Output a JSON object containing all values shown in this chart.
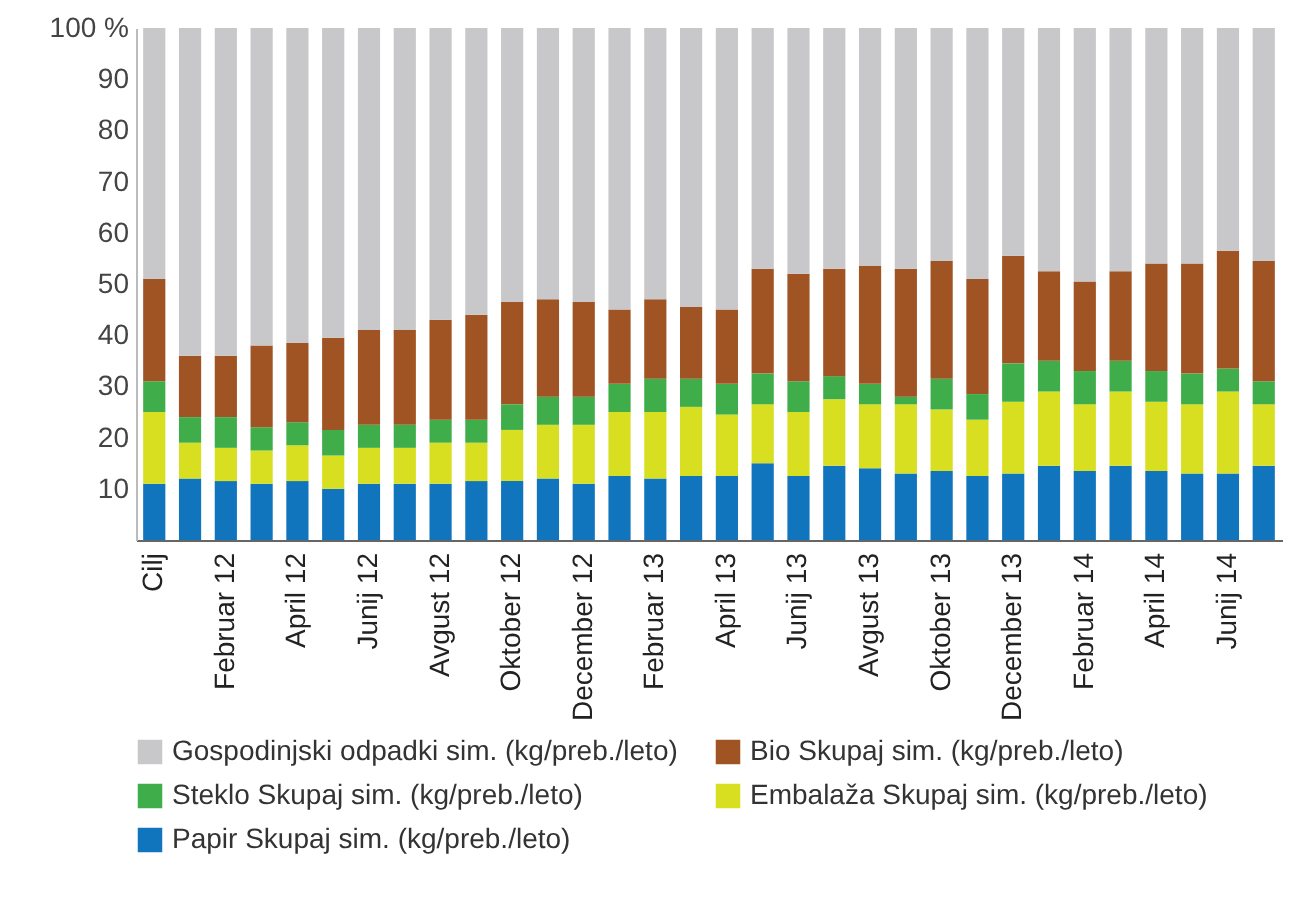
{
  "chart_data": {
    "type": "bar",
    "stacked": true,
    "legend": "bottom",
    "categories": [
      "Cilj",
      null,
      "Februar 12",
      null,
      "April 12",
      null,
      "Junij 12",
      null,
      "Avgust 12",
      null,
      "Oktober 12",
      null,
      "December 12",
      null,
      "Februar 13",
      null,
      "April 13",
      null,
      "Junij 13",
      null,
      "Avgust 13",
      null,
      "Oktober 13",
      null,
      "December 13",
      null,
      "Februar 14",
      null,
      "April 14",
      null,
      "Junij 14",
      null
    ],
    "ylim": [
      0,
      100
    ],
    "yticks": [
      10,
      20,
      30,
      40,
      50,
      60,
      70,
      80,
      90,
      {
        "value": 100,
        "label": "100 %"
      }
    ],
    "series": [
      {
        "name": "Papir Skupaj sim. (kg/preb./leto)",
        "color": "#1175be",
        "values": [
          11,
          12,
          11.5,
          11,
          11.5,
          10,
          11,
          11,
          11,
          11.5,
          11.5,
          12,
          11,
          12.5,
          12,
          12.5,
          12.5,
          15,
          12.5,
          14.5,
          14,
          13,
          13.5,
          12.5,
          13,
          14.5,
          13.5,
          14.5,
          13.5,
          13,
          13,
          14.5
        ]
      },
      {
        "name": "Embalaža Skupaj sim. (kg/preb./leto)",
        "color": "#d8df20",
        "values": [
          14,
          7,
          6.5,
          6.5,
          7,
          6.5,
          7,
          7,
          8,
          7.5,
          10,
          10.5,
          11.5,
          12.5,
          13,
          13.5,
          12,
          11.5,
          12.5,
          13,
          12.5,
          13.5,
          12,
          11,
          14,
          14.5,
          13,
          14.5,
          13.5,
          13.5,
          16,
          12
        ]
      },
      {
        "name": "Steklo Skupaj sim. (kg/preb./leto)",
        "color": "#3fae4a",
        "values": [
          6,
          5,
          6,
          4.5,
          4.5,
          5,
          4.5,
          4.5,
          4.5,
          4.5,
          5,
          5.5,
          5.5,
          5.5,
          6.5,
          5.5,
          6,
          6,
          6,
          4.5,
          4,
          1.5,
          6,
          5,
          7.5,
          6,
          6.5,
          6,
          6,
          6,
          4.5,
          4.5
        ]
      },
      {
        "name": "Bio Skupaj sim. (kg/preb./leto)",
        "color": "#a05423",
        "values": [
          20,
          12,
          12,
          16,
          15.5,
          18,
          18.5,
          18.5,
          19.5,
          20.5,
          20,
          19,
          18.5,
          14.5,
          15.5,
          14,
          14.5,
          20.5,
          21,
          21,
          23,
          25,
          23,
          22.5,
          21,
          17.5,
          17.5,
          17.5,
          21,
          21.5,
          23,
          23.5
        ]
      },
      {
        "name": "Gospodinjski odpadki sim. (kg/preb./leto)",
        "color": "#c8c8ca",
        "values": [
          49,
          64,
          64,
          62,
          61.5,
          60.5,
          59,
          59,
          57,
          56,
          53.5,
          53,
          53.5,
          55,
          53,
          54.5,
          55,
          47,
          48,
          47,
          46.5,
          47,
          45.5,
          49,
          44.5,
          47.5,
          49.5,
          47.5,
          46,
          46,
          43.5,
          45.5
        ]
      }
    ]
  }
}
